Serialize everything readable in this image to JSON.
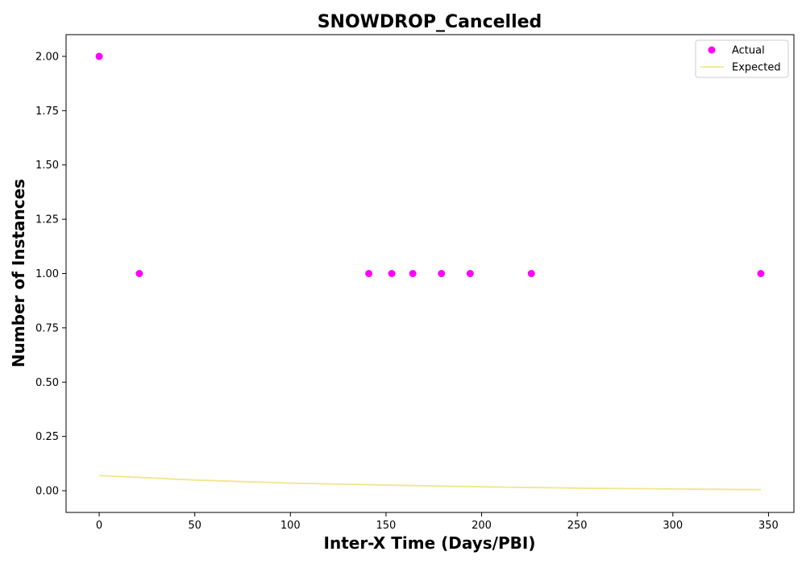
{
  "chart_data": {
    "type": "scatter",
    "title": "SNOWDROP_Cancelled",
    "xlabel": "Inter-X Time (Days/PBI)",
    "ylabel": "Number of Instances",
    "xlim": [
      -17.3,
      363.3
    ],
    "ylim": [
      -0.1,
      2.1
    ],
    "x_ticks": [
      0,
      50,
      100,
      150,
      200,
      250,
      300,
      350
    ],
    "x_tick_labels": [
      "0",
      "50",
      "100",
      "150",
      "200",
      "250",
      "300",
      "350"
    ],
    "y_ticks": [
      0.0,
      0.25,
      0.5,
      0.75,
      1.0,
      1.25,
      1.5,
      1.75,
      2.0
    ],
    "y_tick_labels": [
      "0.00",
      "0.25",
      "0.50",
      "0.75",
      "1.00",
      "1.25",
      "1.50",
      "1.75",
      "2.00"
    ],
    "grid": false,
    "legend_position": "top-right",
    "series": [
      {
        "name": "Actual",
        "kind": "scatter",
        "color": "#ff00ff",
        "points": [
          [
            0,
            2
          ],
          [
            21,
            1
          ],
          [
            141,
            1
          ],
          [
            153,
            1
          ],
          [
            164,
            1
          ],
          [
            179,
            1
          ],
          [
            194,
            1
          ],
          [
            226,
            1
          ],
          [
            346,
            1
          ]
        ]
      },
      {
        "name": "Expected",
        "kind": "line",
        "color": "#f0e68c",
        "points": [
          [
            0,
            0.07
          ],
          [
            50,
            0.049
          ],
          [
            100,
            0.035
          ],
          [
            150,
            0.026
          ],
          [
            200,
            0.018
          ],
          [
            250,
            0.012
          ],
          [
            300,
            0.008
          ],
          [
            346,
            0.005
          ]
        ]
      }
    ]
  }
}
